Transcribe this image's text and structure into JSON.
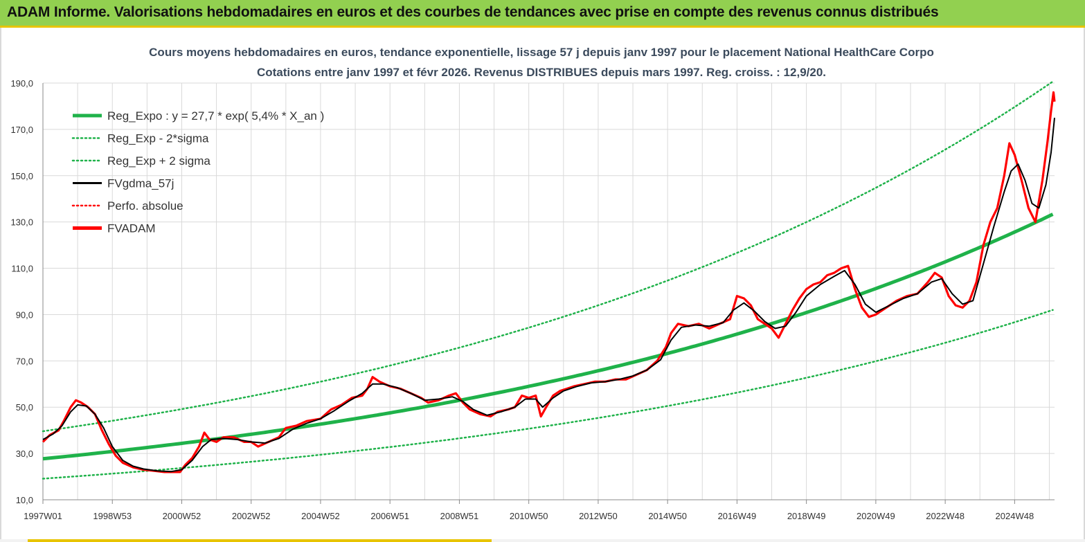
{
  "header": {
    "title": "ADAM Informe. Valorisations hebdomadaires en euros et des courbes de tendances avec prise en compte des revenus connus distribués"
  },
  "chart_data": {
    "type": "line",
    "title": "Cours moyens hebdomadaires en euros, tendance exponentielle, lissage 57 j depuis janv 1997  pour le placement National HealthCare Corpo",
    "subtitle": "Cotations entre janv 1997  et févr  2026. Revenus DISTRIBUES depuis mars  1997. Reg. croiss. : 12,9/20.",
    "xlabel": "",
    "ylabel": "",
    "ylim": [
      10,
      190
    ],
    "yticks": [
      "10,0",
      "30,0",
      "50,0",
      "70,0",
      "90,0",
      "110,0",
      "130,0",
      "150,0",
      "170,0",
      "190,0"
    ],
    "xlim": [
      1997.0,
      2026.15
    ],
    "xticks": [
      {
        "label": "1997W01",
        "t": 1997.0
      },
      {
        "label": "1998W53",
        "t": 1999.0
      },
      {
        "label": "2000W52",
        "t": 2001.0
      },
      {
        "label": "2002W52",
        "t": 2003.0
      },
      {
        "label": "2004W52",
        "t": 2005.0
      },
      {
        "label": "2006W51",
        "t": 2007.0
      },
      {
        "label": "2008W51",
        "t": 2009.0
      },
      {
        "label": "2010W50",
        "t": 2011.0
      },
      {
        "label": "2012W50",
        "t": 2013.0
      },
      {
        "label": "2014W50",
        "t": 2015.0
      },
      {
        "label": "2016W49",
        "t": 2017.0
      },
      {
        "label": "2018W49",
        "t": 2019.0
      },
      {
        "label": "2020W49",
        "t": 2021.0
      },
      {
        "label": "2022W48",
        "t": 2023.0
      },
      {
        "label": "2024W48",
        "t": 2025.0
      }
    ],
    "grid": true,
    "legend_position": "top-left",
    "legend": [
      {
        "label": "Reg_Expo : y = 27,7 * exp( 5,4% *  X_an )",
        "color": "#1fb24a",
        "style": "solid-thick"
      },
      {
        "label": "Reg_Exp - 2*sigma",
        "color": "#1fb24a",
        "style": "dotted"
      },
      {
        "label": "Reg_Exp + 2 sigma",
        "color": "#1fb24a",
        "style": "dotted"
      },
      {
        "label": "FVgdma_57j",
        "color": "#000000",
        "style": "solid"
      },
      {
        "label": "Perfo. absolue",
        "color": "#ff0000",
        "style": "dotted"
      },
      {
        "label": "FVADAM",
        "color": "#ff0000",
        "style": "solid-thick"
      }
    ],
    "regression": {
      "a": 27.7,
      "rate": 0.054,
      "lower_factor": 0.69,
      "upper_factor": 1.43
    },
    "series": [
      {
        "name": "FVADAM",
        "color": "#ff0000",
        "points": [
          [
            1997.0,
            35
          ],
          [
            1997.2,
            38
          ],
          [
            1997.45,
            40
          ],
          [
            1997.6,
            44
          ],
          [
            1997.8,
            50
          ],
          [
            1997.95,
            53
          ],
          [
            1998.1,
            52
          ],
          [
            1998.3,
            50
          ],
          [
            1998.5,
            47
          ],
          [
            1998.7,
            40
          ],
          [
            1998.9,
            34
          ],
          [
            1999.1,
            29
          ],
          [
            1999.3,
            26
          ],
          [
            1999.6,
            24
          ],
          [
            1999.9,
            23
          ],
          [
            2000.2,
            22.5
          ],
          [
            2000.5,
            22
          ],
          [
            2000.8,
            22
          ],
          [
            2000.95,
            22
          ],
          [
            2001.1,
            25
          ],
          [
            2001.3,
            28
          ],
          [
            2001.5,
            33
          ],
          [
            2001.65,
            39
          ],
          [
            2001.8,
            36
          ],
          [
            2002.0,
            35
          ],
          [
            2002.2,
            37
          ],
          [
            2002.5,
            37
          ],
          [
            2002.8,
            35
          ],
          [
            2003.0,
            35
          ],
          [
            2003.2,
            33
          ],
          [
            2003.5,
            35
          ],
          [
            2003.8,
            37
          ],
          [
            2004.0,
            41
          ],
          [
            2004.3,
            42
          ],
          [
            2004.6,
            44
          ],
          [
            2005.0,
            45
          ],
          [
            2005.3,
            49
          ],
          [
            2005.6,
            51
          ],
          [
            2005.9,
            54
          ],
          [
            2006.2,
            55
          ],
          [
            2006.35,
            58
          ],
          [
            2006.5,
            63
          ],
          [
            2006.7,
            61
          ],
          [
            2007.0,
            59
          ],
          [
            2007.3,
            58
          ],
          [
            2007.6,
            56
          ],
          [
            2007.9,
            54
          ],
          [
            2008.1,
            52
          ],
          [
            2008.4,
            53
          ],
          [
            2008.7,
            55
          ],
          [
            2008.9,
            56
          ],
          [
            2009.1,
            52
          ],
          [
            2009.3,
            49
          ],
          [
            2009.6,
            47
          ],
          [
            2009.9,
            46
          ],
          [
            2010.1,
            48
          ],
          [
            2010.4,
            49
          ],
          [
            2010.6,
            50
          ],
          [
            2010.8,
            55
          ],
          [
            2011.0,
            54
          ],
          [
            2011.2,
            55
          ],
          [
            2011.35,
            46
          ],
          [
            2011.5,
            50
          ],
          [
            2011.7,
            55
          ],
          [
            2011.9,
            57
          ],
          [
            2012.1,
            58
          ],
          [
            2012.3,
            59
          ],
          [
            2012.6,
            60
          ],
          [
            2012.9,
            61
          ],
          [
            2013.2,
            61
          ],
          [
            2013.5,
            62
          ],
          [
            2013.8,
            62
          ],
          [
            2014.1,
            64
          ],
          [
            2014.4,
            66
          ],
          [
            2014.7,
            70
          ],
          [
            2014.95,
            76
          ],
          [
            2015.1,
            82
          ],
          [
            2015.3,
            86
          ],
          [
            2015.6,
            85
          ],
          [
            2015.9,
            86
          ],
          [
            2016.2,
            84
          ],
          [
            2016.5,
            86
          ],
          [
            2016.8,
            88
          ],
          [
            2017.0,
            98
          ],
          [
            2017.2,
            97
          ],
          [
            2017.4,
            94
          ],
          [
            2017.6,
            88
          ],
          [
            2017.8,
            86
          ],
          [
            2018.0,
            84
          ],
          [
            2018.2,
            80
          ],
          [
            2018.4,
            86
          ],
          [
            2018.6,
            92
          ],
          [
            2018.8,
            97
          ],
          [
            2019.0,
            101
          ],
          [
            2019.2,
            103
          ],
          [
            2019.4,
            104
          ],
          [
            2019.6,
            107
          ],
          [
            2019.8,
            108
          ],
          [
            2020.0,
            110
          ],
          [
            2020.2,
            111
          ],
          [
            2020.4,
            101
          ],
          [
            2020.6,
            93
          ],
          [
            2020.8,
            89
          ],
          [
            2021.0,
            90
          ],
          [
            2021.3,
            93
          ],
          [
            2021.6,
            96
          ],
          [
            2021.9,
            98
          ],
          [
            2022.2,
            99
          ],
          [
            2022.5,
            104
          ],
          [
            2022.7,
            108
          ],
          [
            2022.9,
            106
          ],
          [
            2023.1,
            98
          ],
          [
            2023.3,
            94
          ],
          [
            2023.5,
            93
          ],
          [
            2023.7,
            96
          ],
          [
            2023.9,
            104
          ],
          [
            2024.1,
            120
          ],
          [
            2024.3,
            130
          ],
          [
            2024.5,
            136
          ],
          [
            2024.7,
            150
          ],
          [
            2024.85,
            164
          ],
          [
            2025.0,
            159
          ],
          [
            2025.2,
            148
          ],
          [
            2025.4,
            136
          ],
          [
            2025.6,
            130
          ],
          [
            2025.8,
            148
          ],
          [
            2025.95,
            165
          ],
          [
            2026.05,
            178
          ],
          [
            2026.12,
            186
          ],
          [
            2026.15,
            182
          ]
        ]
      },
      {
        "name": "FVgdma_57j",
        "color": "#000000",
        "points": [
          [
            1997.0,
            36
          ],
          [
            1997.3,
            38.5
          ],
          [
            1997.55,
            42
          ],
          [
            1997.8,
            48
          ],
          [
            1998.0,
            51
          ],
          [
            1998.25,
            50.5
          ],
          [
            1998.5,
            47
          ],
          [
            1998.75,
            41
          ],
          [
            1999.0,
            33
          ],
          [
            1999.3,
            27
          ],
          [
            1999.6,
            24.5
          ],
          [
            1999.9,
            23.3
          ],
          [
            2000.3,
            22.5
          ],
          [
            2000.7,
            22.2
          ],
          [
            2001.0,
            23
          ],
          [
            2001.3,
            27
          ],
          [
            2001.6,
            33
          ],
          [
            2001.85,
            36
          ],
          [
            2002.2,
            36.5
          ],
          [
            2002.6,
            36
          ],
          [
            2003.0,
            35
          ],
          [
            2003.4,
            34.5
          ],
          [
            2003.8,
            36.5
          ],
          [
            2004.2,
            40.5
          ],
          [
            2004.6,
            43
          ],
          [
            2005.0,
            45
          ],
          [
            2005.4,
            48.5
          ],
          [
            2005.8,
            52.5
          ],
          [
            2006.2,
            56
          ],
          [
            2006.5,
            60
          ],
          [
            2006.8,
            60
          ],
          [
            2007.2,
            58.5
          ],
          [
            2007.6,
            56
          ],
          [
            2008.0,
            53
          ],
          [
            2008.4,
            53.5
          ],
          [
            2008.8,
            54.5
          ],
          [
            2009.1,
            52.5
          ],
          [
            2009.4,
            49
          ],
          [
            2009.8,
            46.5
          ],
          [
            2010.2,
            48
          ],
          [
            2010.6,
            50
          ],
          [
            2010.9,
            53.5
          ],
          [
            2011.2,
            53.5
          ],
          [
            2011.4,
            50
          ],
          [
            2011.7,
            54
          ],
          [
            2012.0,
            57
          ],
          [
            2012.4,
            59
          ],
          [
            2012.8,
            60.5
          ],
          [
            2013.2,
            61
          ],
          [
            2013.6,
            62
          ],
          [
            2014.0,
            63.5
          ],
          [
            2014.4,
            66
          ],
          [
            2014.8,
            70.5
          ],
          [
            2015.1,
            79
          ],
          [
            2015.4,
            84.5
          ],
          [
            2015.8,
            85.5
          ],
          [
            2016.2,
            85
          ],
          [
            2016.6,
            86.5
          ],
          [
            2016.9,
            92
          ],
          [
            2017.2,
            95
          ],
          [
            2017.5,
            91.5
          ],
          [
            2017.8,
            87
          ],
          [
            2018.1,
            84
          ],
          [
            2018.4,
            85
          ],
          [
            2018.7,
            91
          ],
          [
            2019.0,
            98
          ],
          [
            2019.4,
            103
          ],
          [
            2019.8,
            106.5
          ],
          [
            2020.1,
            109
          ],
          [
            2020.4,
            103
          ],
          [
            2020.7,
            94.5
          ],
          [
            2021.0,
            91
          ],
          [
            2021.4,
            94
          ],
          [
            2021.8,
            97
          ],
          [
            2022.2,
            99
          ],
          [
            2022.6,
            104
          ],
          [
            2022.9,
            105.5
          ],
          [
            2023.2,
            99
          ],
          [
            2023.5,
            94.5
          ],
          [
            2023.8,
            96
          ],
          [
            2024.1,
            112
          ],
          [
            2024.4,
            128
          ],
          [
            2024.7,
            143
          ],
          [
            2024.9,
            152
          ],
          [
            2025.1,
            155
          ],
          [
            2025.3,
            148
          ],
          [
            2025.5,
            138
          ],
          [
            2025.7,
            136
          ],
          [
            2025.9,
            146
          ],
          [
            2026.05,
            160
          ],
          [
            2026.15,
            175
          ]
        ]
      }
    ]
  }
}
